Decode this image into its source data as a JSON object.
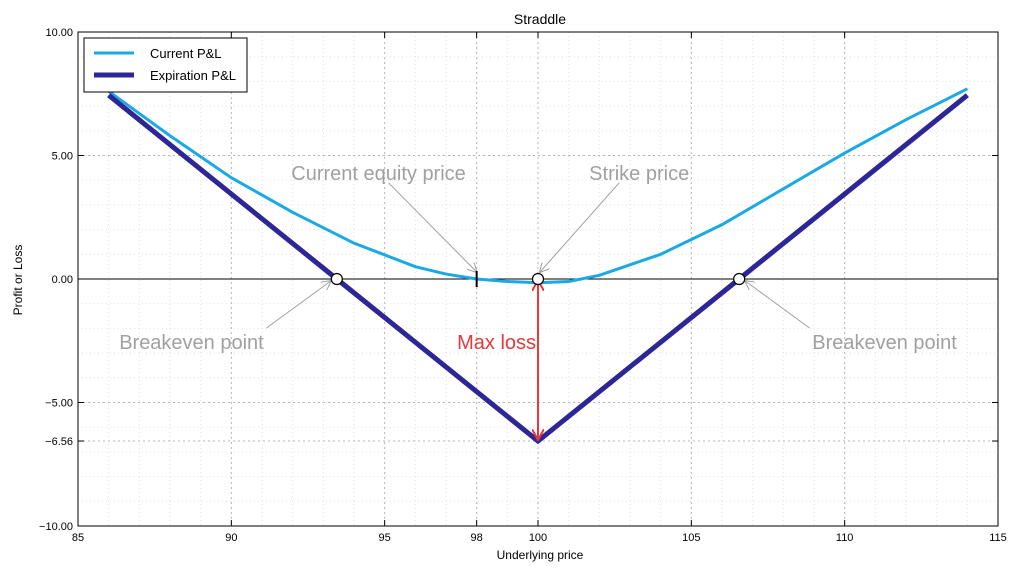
{
  "chart_data": {
    "type": "line",
    "title": "Straddle",
    "xlabel": "Underlying price",
    "ylabel": "Profit or Loss",
    "xlim": [
      85,
      115
    ],
    "ylim": [
      -10,
      10
    ],
    "grid": true,
    "legend_position": "top-left",
    "x_ticks": [
      85,
      90,
      95,
      98,
      100,
      105,
      110,
      115
    ],
    "x_tick_labels": [
      "85",
      "90",
      "95",
      "98",
      "100",
      "105",
      "110",
      "115"
    ],
    "y_ticks": [
      10,
      5,
      0,
      -5,
      -6.56,
      -10
    ],
    "y_tick_labels": [
      "10.00",
      "5.00",
      "0.00",
      "−5.00",
      "−6.56",
      "−10.00"
    ],
    "series": [
      {
        "name": "Current P&L",
        "color": "#1aa9e6",
        "x": [
          86,
          88,
          90,
          92,
          94,
          96,
          97,
          98,
          99,
          100,
          101,
          102,
          104,
          106,
          108,
          110,
          112,
          114
        ],
        "y": [
          7.6,
          5.8,
          4.1,
          2.7,
          1.45,
          0.5,
          0.2,
          0.0,
          -0.1,
          -0.15,
          -0.1,
          0.15,
          1.0,
          2.2,
          3.65,
          5.1,
          6.45,
          7.7
        ]
      },
      {
        "name": "Expiration P&L",
        "color": "#2e2596",
        "x": [
          86,
          93.44,
          100,
          106.56,
          114
        ],
        "y": [
          7.44,
          0,
          -6.56,
          0,
          7.44
        ]
      }
    ],
    "markers": {
      "breakeven_points": [
        [
          93.44,
          0
        ],
        [
          106.56,
          0
        ]
      ],
      "strike_point": [
        100,
        0
      ],
      "current_equity_price": 98
    },
    "annotations": [
      {
        "text": "Current equity price",
        "x": 98,
        "y": 0,
        "text_x": 94.8,
        "text_y": 4.3,
        "color": "#a0a0a0"
      },
      {
        "text": "Strike price",
        "x": 100,
        "y": 0,
        "text_x": 103.3,
        "text_y": 4.3,
        "color": "#a0a0a0"
      },
      {
        "text": "Breakeven point",
        "x": 93.44,
        "y": 0,
        "text_x": 88.7,
        "text_y": -2.55,
        "color": "#a0a0a0"
      },
      {
        "text": "Breakeven point",
        "x": 106.56,
        "y": 0,
        "text_x": 111.3,
        "text_y": -2.55,
        "color": "#a0a0a0"
      },
      {
        "text": "Max loss",
        "x": 100,
        "y": -6.56,
        "text_x": 98.65,
        "text_y": -2.55,
        "color": "#e8393a"
      }
    ],
    "max_loss_color": "#e8393a"
  }
}
